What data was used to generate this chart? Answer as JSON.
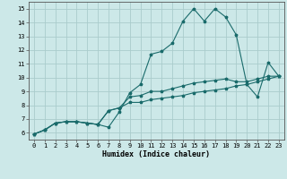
{
  "xlabel": "Humidex (Indice chaleur)",
  "xlim": [
    -0.5,
    23.5
  ],
  "ylim": [
    5.5,
    15.5
  ],
  "yticks": [
    6,
    7,
    8,
    9,
    10,
    11,
    12,
    13,
    14,
    15
  ],
  "xticks": [
    0,
    1,
    2,
    3,
    4,
    5,
    6,
    7,
    8,
    9,
    10,
    11,
    12,
    13,
    14,
    15,
    16,
    17,
    18,
    19,
    20,
    21,
    22,
    23
  ],
  "bg_color": "#cce8e8",
  "grid_color": "#aacccc",
  "line_color": "#1a6b6b",
  "line1_x": [
    0,
    1,
    2,
    3,
    4,
    5,
    6,
    7,
    8,
    9,
    10,
    11,
    12,
    13,
    14,
    15,
    16,
    17,
    18,
    19,
    20,
    21,
    22,
    23
  ],
  "line1_y": [
    5.9,
    6.2,
    6.7,
    6.8,
    6.8,
    6.7,
    6.6,
    6.4,
    7.5,
    8.9,
    9.5,
    11.7,
    11.9,
    12.5,
    14.1,
    15.0,
    14.1,
    15.0,
    14.4,
    13.1,
    9.5,
    8.6,
    11.1,
    10.1
  ],
  "line2_x": [
    0,
    1,
    2,
    3,
    4,
    5,
    6,
    7,
    8,
    9,
    10,
    11,
    12,
    13,
    14,
    15,
    16,
    17,
    18,
    19,
    20,
    21,
    22,
    23
  ],
  "line2_y": [
    5.9,
    6.2,
    6.7,
    6.8,
    6.8,
    6.7,
    6.6,
    7.6,
    7.8,
    8.6,
    8.7,
    9.0,
    9.0,
    9.2,
    9.4,
    9.6,
    9.7,
    9.8,
    9.9,
    9.7,
    9.7,
    9.9,
    10.1,
    10.1
  ],
  "line3_x": [
    0,
    1,
    2,
    3,
    4,
    5,
    6,
    7,
    8,
    9,
    10,
    11,
    12,
    13,
    14,
    15,
    16,
    17,
    18,
    19,
    20,
    21,
    22,
    23
  ],
  "line3_y": [
    5.9,
    6.2,
    6.7,
    6.8,
    6.8,
    6.7,
    6.6,
    7.6,
    7.8,
    8.2,
    8.2,
    8.4,
    8.5,
    8.6,
    8.7,
    8.9,
    9.0,
    9.1,
    9.2,
    9.4,
    9.5,
    9.7,
    9.9,
    10.1
  ],
  "lw": 0.8,
  "ms": 2.5,
  "tick_fontsize": 5,
  "xlabel_fontsize": 6
}
